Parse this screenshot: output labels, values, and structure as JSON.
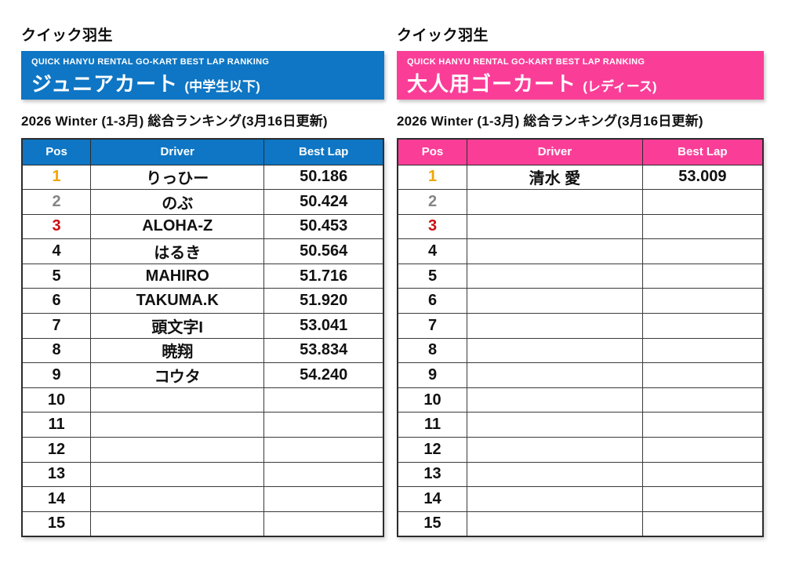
{
  "colors": {
    "junior_accent": "#0E76C4",
    "ladies_accent": "#FA3E98",
    "pos1_gold": "#F2A504",
    "pos2_silver": "#858585",
    "pos3_red": "#CB0F14"
  },
  "panels": [
    {
      "site_title": "クイック羽生",
      "banner": {
        "tagline": "QUICK HANYU RENTAL GO-KART BEST LAP RANKING",
        "category": "ジュニアカート",
        "category_note": "(中学生以下)"
      },
      "season_line": "2026 Winter (1-3月) 総合ランキング(3月16日更新)",
      "columns": {
        "pos": "Pos",
        "driver": "Driver",
        "best_lap": "Best Lap"
      },
      "rows": [
        {
          "pos": "1",
          "driver": "りっひー",
          "best_lap": "50.186"
        },
        {
          "pos": "2",
          "driver": "のぶ",
          "best_lap": "50.424"
        },
        {
          "pos": "3",
          "driver": "ALOHA-Z",
          "best_lap": "50.453"
        },
        {
          "pos": "4",
          "driver": "はるき",
          "best_lap": "50.564"
        },
        {
          "pos": "5",
          "driver": "MAHIRO",
          "best_lap": "51.716"
        },
        {
          "pos": "6",
          "driver": "TAKUMA.K",
          "best_lap": "51.920"
        },
        {
          "pos": "7",
          "driver": "頭文字I",
          "best_lap": "53.041"
        },
        {
          "pos": "8",
          "driver": "暁翔",
          "best_lap": "53.834"
        },
        {
          "pos": "9",
          "driver": "コウタ",
          "best_lap": "54.240"
        },
        {
          "pos": "10",
          "driver": "",
          "best_lap": ""
        },
        {
          "pos": "11",
          "driver": "",
          "best_lap": ""
        },
        {
          "pos": "12",
          "driver": "",
          "best_lap": ""
        },
        {
          "pos": "13",
          "driver": "",
          "best_lap": ""
        },
        {
          "pos": "14",
          "driver": "",
          "best_lap": ""
        },
        {
          "pos": "15",
          "driver": "",
          "best_lap": ""
        }
      ]
    },
    {
      "site_title": "クイック羽生",
      "banner": {
        "tagline": "QUICK HANYU RENTAL GO-KART BEST LAP RANKING",
        "category": "大人用ゴーカート",
        "category_note": "(レディース)"
      },
      "season_line": "2026 Winter (1-3月) 総合ランキング(3月16日更新)",
      "columns": {
        "pos": "Pos",
        "driver": "Driver",
        "best_lap": "Best Lap"
      },
      "rows": [
        {
          "pos": "1",
          "driver": "清水 愛",
          "best_lap": "53.009"
        },
        {
          "pos": "2",
          "driver": "",
          "best_lap": ""
        },
        {
          "pos": "3",
          "driver": "",
          "best_lap": ""
        },
        {
          "pos": "4",
          "driver": "",
          "best_lap": ""
        },
        {
          "pos": "5",
          "driver": "",
          "best_lap": ""
        },
        {
          "pos": "6",
          "driver": "",
          "best_lap": ""
        },
        {
          "pos": "7",
          "driver": "",
          "best_lap": ""
        },
        {
          "pos": "8",
          "driver": "",
          "best_lap": ""
        },
        {
          "pos": "9",
          "driver": "",
          "best_lap": ""
        },
        {
          "pos": "10",
          "driver": "",
          "best_lap": ""
        },
        {
          "pos": "11",
          "driver": "",
          "best_lap": ""
        },
        {
          "pos": "12",
          "driver": "",
          "best_lap": ""
        },
        {
          "pos": "13",
          "driver": "",
          "best_lap": ""
        },
        {
          "pos": "14",
          "driver": "",
          "best_lap": ""
        },
        {
          "pos": "15",
          "driver": "",
          "best_lap": ""
        }
      ]
    }
  ]
}
